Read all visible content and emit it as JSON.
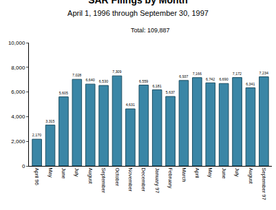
{
  "chart_data": {
    "type": "bar",
    "title": "SAR Filings by Month",
    "subtitle": "April 1, 1996 through September 30, 1997",
    "annotations": [
      "Total: 109,887"
    ],
    "categories": [
      "April 96",
      "May",
      "June",
      "July",
      "August",
      "September",
      "October",
      "November",
      "December",
      "January 97",
      "February",
      "March",
      "April",
      "May",
      "June",
      "July",
      "August",
      "September 97"
    ],
    "values": [
      2170,
      3315,
      5605,
      7028,
      6640,
      6530,
      7309,
      4631,
      6559,
      6181,
      5637,
      6937,
      7166,
      6742,
      6690,
      7172,
      6341,
      7234
    ],
    "value_labels": [
      "2,170",
      "3,315",
      "5,605",
      "7,028",
      "6,640",
      "6,530",
      "7,309",
      "4,631",
      "6,559",
      "6,181",
      "5,637",
      "6,937",
      "7,166",
      "6,742",
      "6,690",
      "7,172",
      "6,341",
      "7,234"
    ],
    "data_labels": true,
    "color": "#3a86a6",
    "ylim": [
      0,
      10000
    ],
    "yticks": [
      0,
      {
        "value": 2000,
        "label": "2,000"
      },
      {
        "value": 4000,
        "label": "4,000"
      },
      {
        "value": 6000,
        "label": "6,000"
      },
      {
        "value": 8000,
        "label": "8,000"
      },
      {
        "value": 10000,
        "label": "10,000"
      }
    ],
    "grid": false
  }
}
